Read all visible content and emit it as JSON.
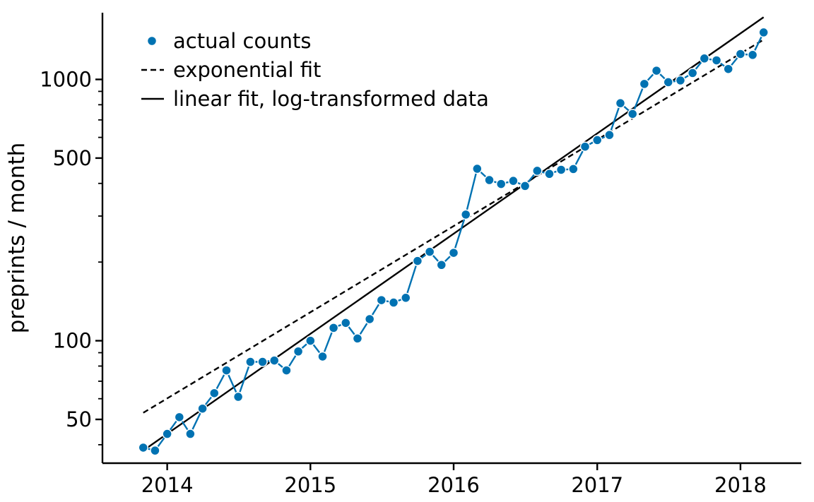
{
  "chart_data": {
    "type": "line",
    "title": "",
    "xlabel": "",
    "ylabel": "preprints / month",
    "y_scale": "log",
    "ylim": [
      34,
      1800
    ],
    "xlim": [
      "2013-07-20",
      "2018-06-05"
    ],
    "x_ticks": [
      "2014-01-01",
      "2015-01-01",
      "2016-01-01",
      "2017-01-01",
      "2018-01-01"
    ],
    "x_tick_labels": [
      "2014",
      "2015",
      "2016",
      "2017",
      "2018"
    ],
    "y_ticks": [
      50,
      100,
      500,
      1000
    ],
    "y_tick_labels": [
      "50",
      "100",
      "500",
      "1000"
    ],
    "y_minor_ticks": [
      40,
      60,
      70,
      80,
      90,
      200,
      300,
      400,
      600,
      700,
      800,
      900
    ],
    "grid": false,
    "legend_position": "top-left",
    "colors": {
      "actual": "#0072b2",
      "fit": "#000000"
    },
    "series": [
      {
        "name": "actual counts",
        "style": "markers-with-line",
        "x": [
          "2013-11-01",
          "2013-12-01",
          "2014-01-01",
          "2014-02-01",
          "2014-03-01",
          "2014-04-01",
          "2014-05-01",
          "2014-06-01",
          "2014-07-01",
          "2014-08-01",
          "2014-09-01",
          "2014-10-01",
          "2014-11-01",
          "2014-12-01",
          "2015-01-01",
          "2015-02-01",
          "2015-03-01",
          "2015-04-01",
          "2015-05-01",
          "2015-06-01",
          "2015-07-01",
          "2015-08-01",
          "2015-09-01",
          "2015-10-01",
          "2015-11-01",
          "2015-12-01",
          "2016-01-01",
          "2016-02-01",
          "2016-03-01",
          "2016-04-01",
          "2016-05-01",
          "2016-06-01",
          "2016-07-01",
          "2016-08-01",
          "2016-09-01",
          "2016-10-01",
          "2016-11-01",
          "2016-12-01",
          "2017-01-01",
          "2017-02-01",
          "2017-03-01",
          "2017-04-01",
          "2017-05-01",
          "2017-06-01",
          "2017-07-01",
          "2017-08-01",
          "2017-09-01",
          "2017-10-01",
          "2017-11-01",
          "2017-12-01",
          "2018-01-01",
          "2018-02-01",
          "2018-03-01"
        ],
        "values": [
          39,
          38,
          44,
          51,
          44,
          55,
          63,
          77,
          61,
          83,
          83,
          84,
          77,
          91,
          100,
          87,
          112,
          117,
          102,
          121,
          143,
          140,
          146,
          202,
          219,
          195,
          217,
          304,
          455,
          412,
          398,
          409,
          391,
          447,
          435,
          451,
          454,
          553,
          586,
          613,
          811,
          738,
          961,
          1080,
          976,
          991,
          1058,
          1203,
          1183,
          1096,
          1251,
          1241,
          1513
        ]
      },
      {
        "name": "exponential fit",
        "style": "dashed",
        "x": [
          "2013-11-01",
          "2018-03-01"
        ],
        "values": [
          53,
          1420
        ]
      },
      {
        "name": "linear fit, log-transformed data",
        "style": "solid",
        "x": [
          "2013-11-01",
          "2018-03-01"
        ],
        "values": [
          38,
          1730
        ]
      }
    ]
  }
}
